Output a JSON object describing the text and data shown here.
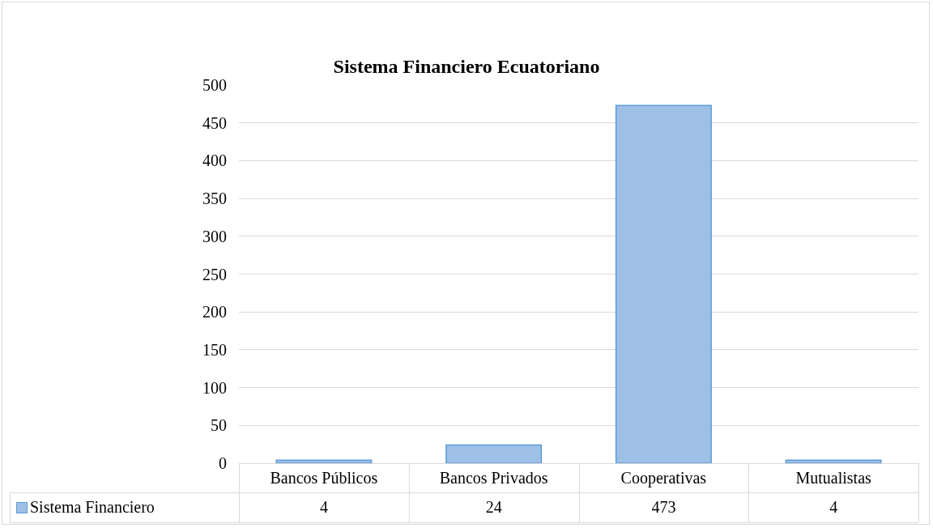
{
  "chart_data": {
    "type": "bar",
    "title": "Sistema Financiero Ecuatoriano",
    "categories": [
      "Bancos Públicos",
      "Bancos Privados",
      "Cooperativas",
      "Mutualistas"
    ],
    "series": [
      {
        "name": "Sistema Financiero",
        "color": "#9fc0e6",
        "values": [
          4,
          24,
          473,
          4
        ]
      }
    ],
    "ylim": [
      0,
      500
    ],
    "yticks": [
      0,
      50,
      100,
      150,
      200,
      250,
      300,
      350,
      400,
      450,
      500
    ],
    "grid": "y",
    "legend": "bottom",
    "data_labels": true
  }
}
